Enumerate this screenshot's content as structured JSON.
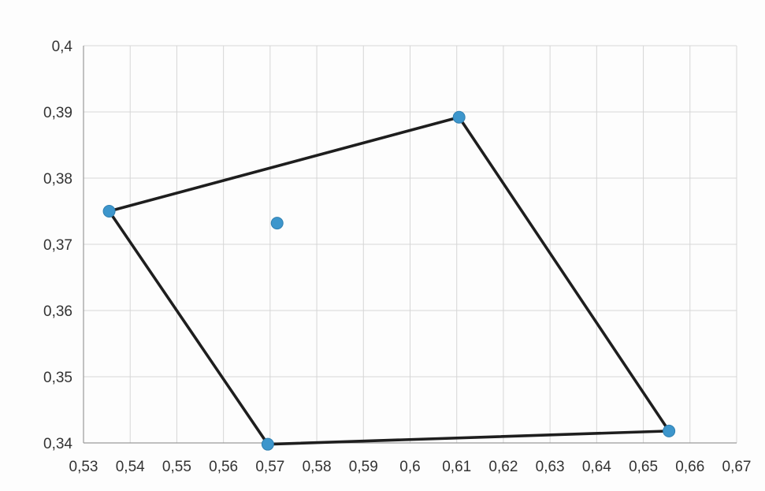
{
  "chart_data": {
    "type": "scatter",
    "title": "",
    "xlabel": "",
    "ylabel": "",
    "xlim": [
      0.53,
      0.67
    ],
    "ylim": [
      0.34,
      0.4
    ],
    "grid": true,
    "legend": "none",
    "decimal_separator": ",",
    "x_ticks": [
      "0,53",
      "0,54",
      "0,55",
      "0,56",
      "0,57",
      "0,58",
      "0,59",
      "0,6",
      "0,61",
      "0,62",
      "0,63",
      "0,64",
      "0,65",
      "0,66",
      "0,67"
    ],
    "y_ticks": [
      "0,34",
      "0,35",
      "0,36",
      "0,37",
      "0,38",
      "0,39",
      "0,4"
    ],
    "x_tick_values": [
      0.53,
      0.54,
      0.55,
      0.56,
      0.57,
      0.58,
      0.59,
      0.6,
      0.61,
      0.62,
      0.63,
      0.64,
      0.65,
      0.66,
      0.67
    ],
    "y_tick_values": [
      0.34,
      0.35,
      0.36,
      0.37,
      0.38,
      0.39,
      0.4
    ],
    "series": [
      {
        "type": "scatter",
        "points": [
          {
            "x": 0.5355,
            "y": 0.375
          },
          {
            "x": 0.5715,
            "y": 0.3732
          },
          {
            "x": 0.6105,
            "y": 0.3892
          },
          {
            "x": 0.6555,
            "y": 0.3418
          },
          {
            "x": 0.5695,
            "y": 0.3398
          }
        ]
      },
      {
        "type": "line",
        "closed": true,
        "points": [
          {
            "x": 0.5355,
            "y": 0.375
          },
          {
            "x": 0.6105,
            "y": 0.3892
          },
          {
            "x": 0.6555,
            "y": 0.3418
          },
          {
            "x": 0.5695,
            "y": 0.3398
          }
        ]
      }
    ],
    "colors": {
      "marker": "#3d96cc",
      "line": "#1e1e1e",
      "grid": "#d6d6d6",
      "axis": "#9a9a9a"
    }
  }
}
